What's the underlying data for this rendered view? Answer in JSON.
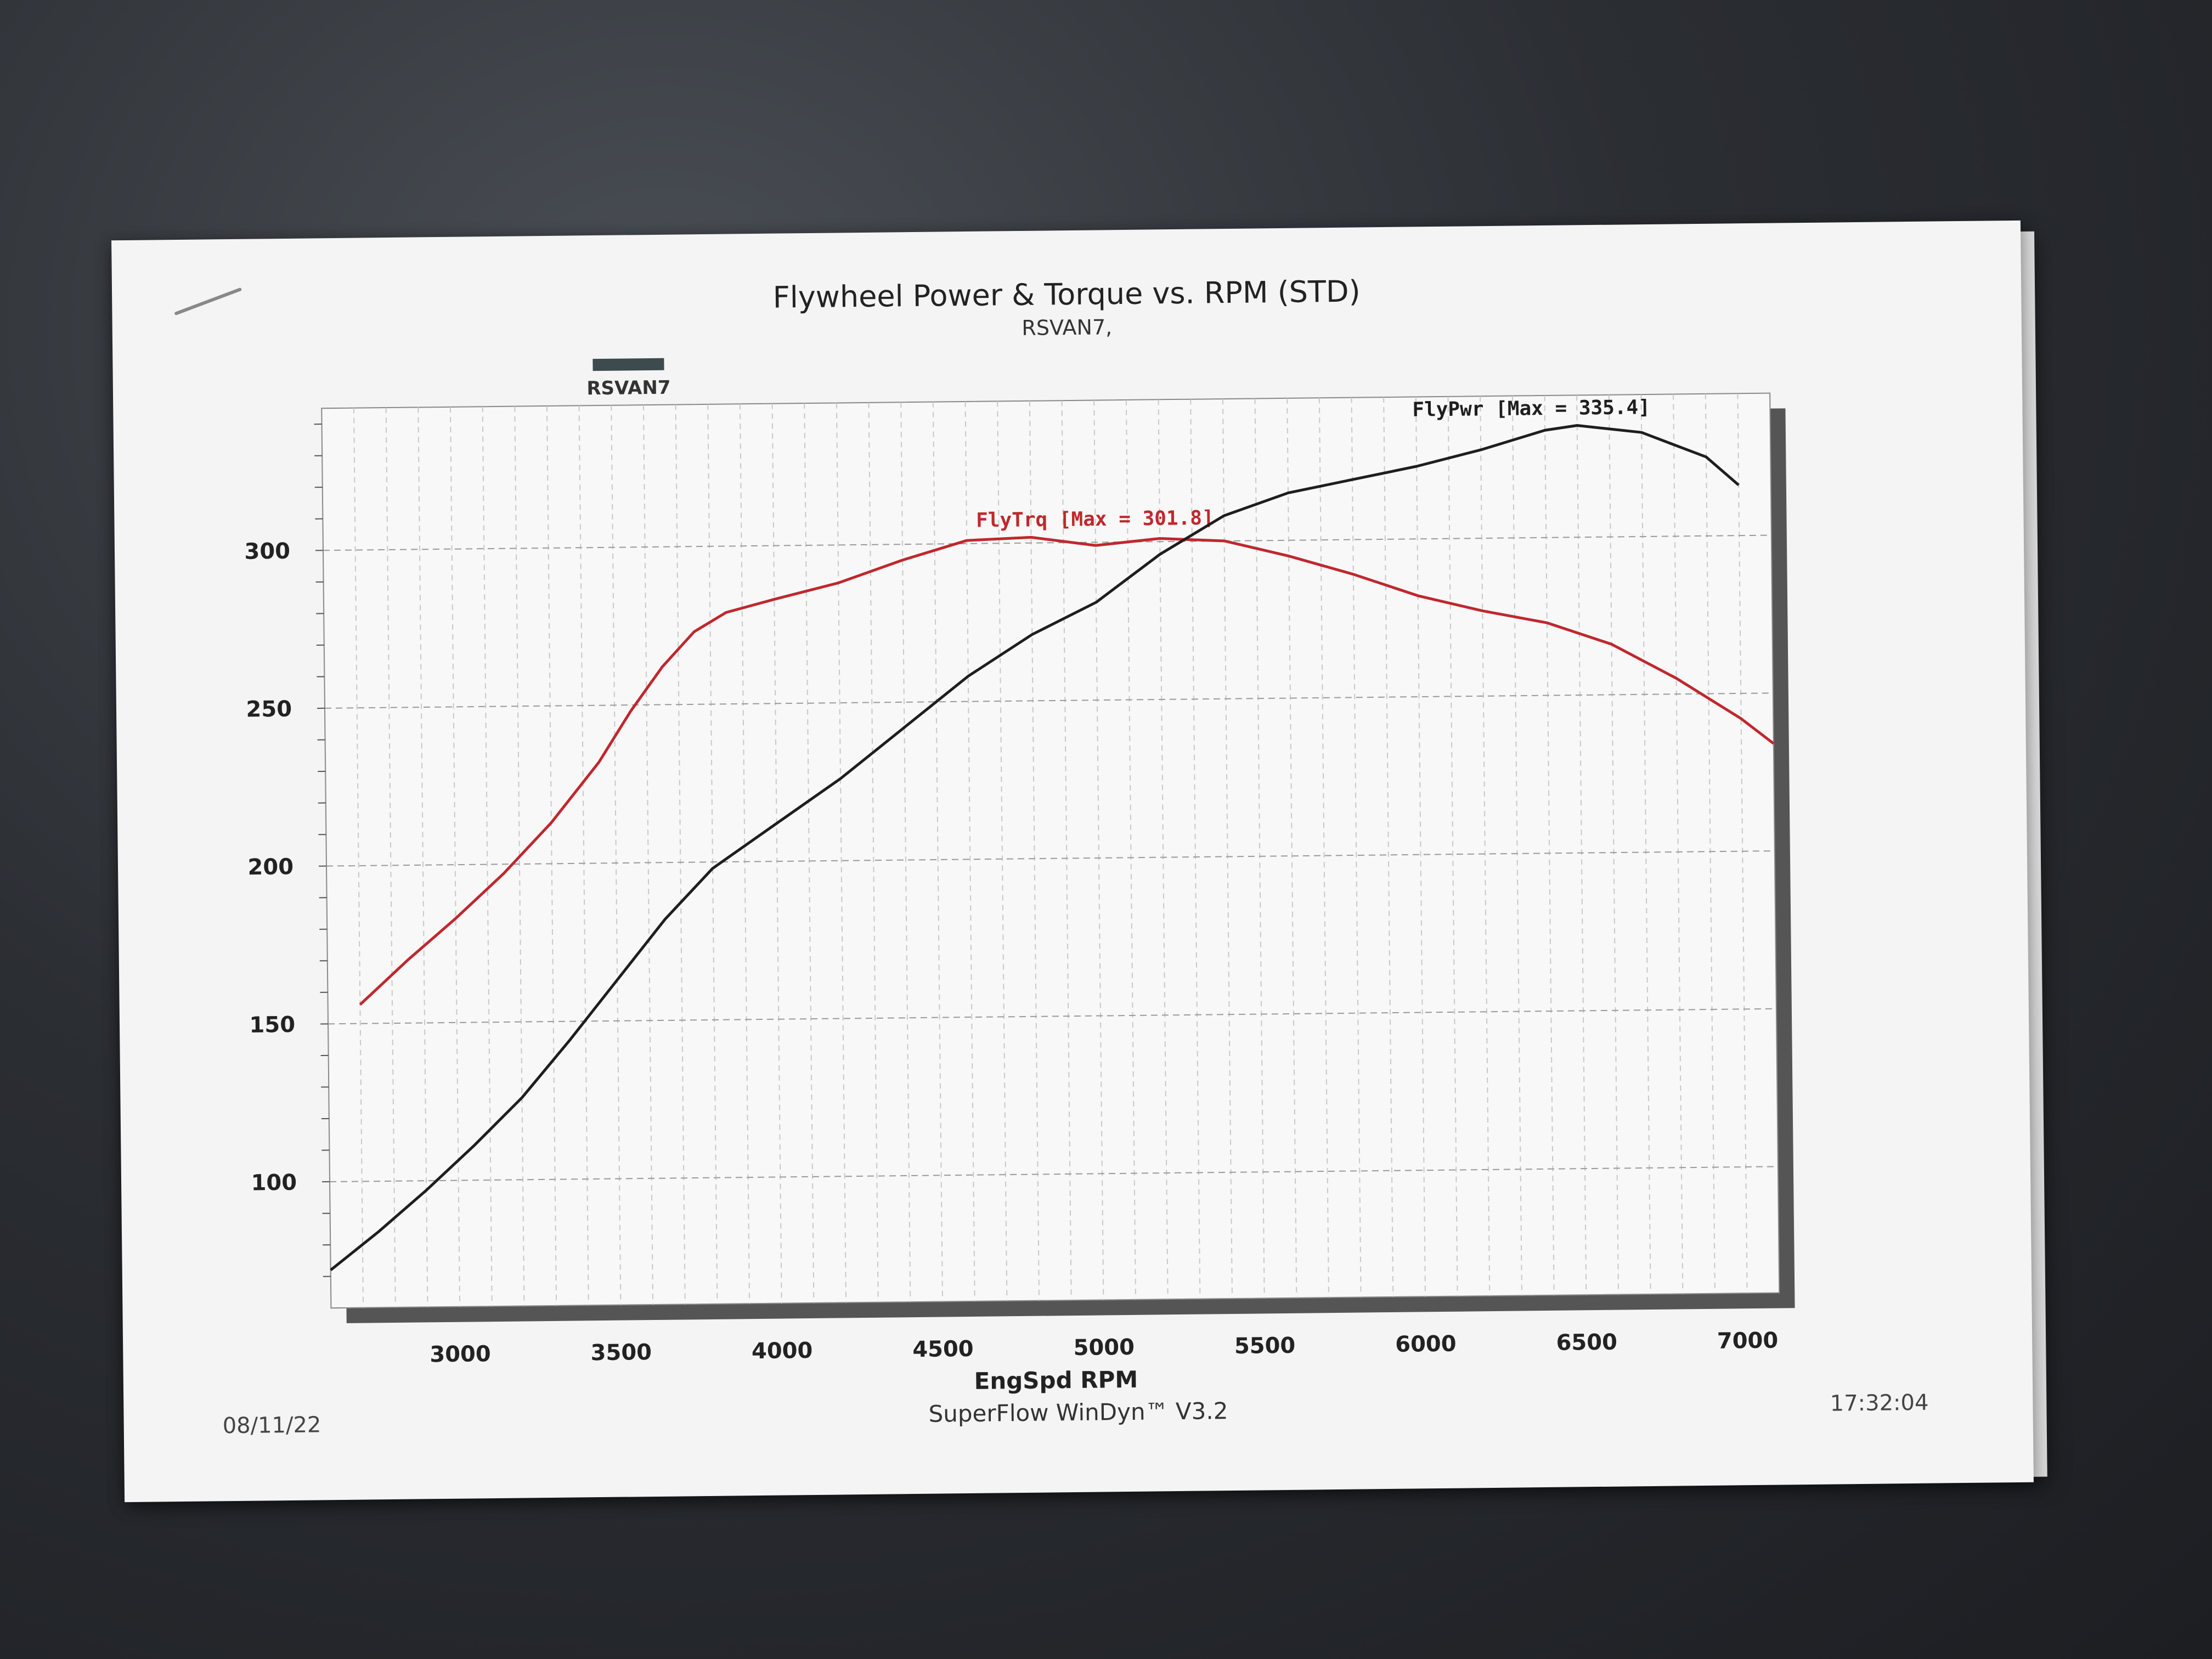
{
  "chart_data": {
    "type": "line",
    "title": "Flywheel Power & Torque vs. RPM (STD)",
    "subtitle": "RSVAN7,",
    "legend": [
      "RSVAN7"
    ],
    "xlabel": "EngSpd RPM",
    "ylabel": "",
    "xlim": [
      2600,
      7100
    ],
    "ylim": [
      60,
      345
    ],
    "xticks": [
      3000,
      3500,
      4000,
      4500,
      5000,
      5500,
      6000,
      6500,
      7000
    ],
    "yticks": [
      100,
      150,
      200,
      250,
      300
    ],
    "grid": true,
    "series": [
      {
        "name": "FlyTrq",
        "label": "FlyTrq [Max = 301.8]",
        "color": "#c0272d",
        "x": [
          2700,
          2850,
          3000,
          3150,
          3300,
          3450,
          3550,
          3650,
          3750,
          3850,
          4000,
          4200,
          4400,
          4600,
          4800,
          5000,
          5200,
          5400,
          5600,
          5800,
          6000,
          6200,
          6400,
          6600,
          6800,
          7000,
          7100
        ],
        "y": [
          156,
          170,
          183,
          197,
          213,
          232,
          248,
          262,
          273,
          279,
          283,
          288,
          295,
          301,
          301.8,
          299,
          301,
          300,
          295,
          289,
          282,
          277,
          273,
          266,
          255,
          242,
          234
        ]
      },
      {
        "name": "FlyPwr",
        "label": "FlyPwr [Max = 335.4]",
        "color": "#1e1e1e",
        "x": [
          2600,
          2750,
          2900,
          3050,
          3200,
          3350,
          3500,
          3650,
          3800,
          4000,
          4200,
          4400,
          4600,
          4800,
          5000,
          5200,
          5400,
          5600,
          5800,
          6000,
          6200,
          6400,
          6500,
          6700,
          6900,
          7000
        ],
        "y": [
          72,
          84,
          97,
          111,
          126,
          144,
          163,
          182,
          198,
          212,
          226,
          242,
          258,
          271,
          281,
          296,
          308,
          315,
          319,
          323,
          328,
          334,
          335.4,
          333,
          325,
          316
        ]
      }
    ]
  },
  "footer": {
    "date": "08/11/22",
    "software": "SuperFlow WinDyn™ V3.2",
    "time": "17:32:04"
  }
}
